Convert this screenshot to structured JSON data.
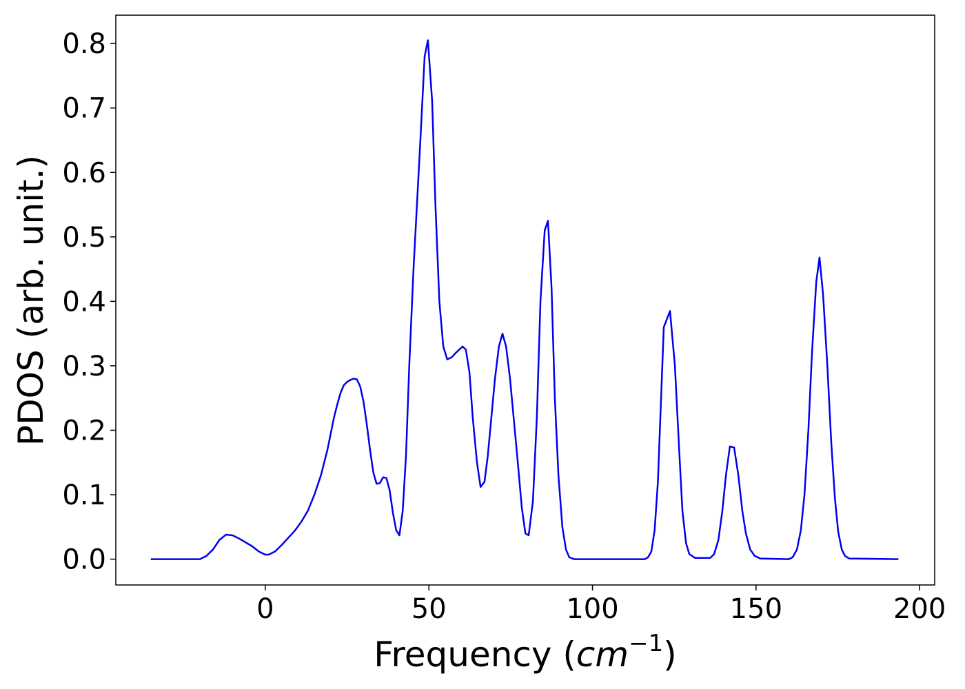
{
  "chart_data": {
    "type": "line",
    "xlabel": [
      "Frequency (",
      "cm",
      "−1",
      ")"
    ],
    "ylabel": "PDOS (arb. unit.)",
    "xlim": [
      -45.7,
      204.6
    ],
    "ylim": [
      -0.04,
      0.844
    ],
    "xticks": [
      0,
      50,
      100,
      150,
      200
    ],
    "yticks": [
      {
        "value": 0,
        "label": "0.0"
      },
      0.1,
      0.2,
      0.3,
      0.4,
      0.5,
      0.6,
      0.7,
      0.8
    ],
    "series": [
      {
        "name": "PDOS",
        "color": "#0000ee",
        "x": [
          -35,
          -20,
          -18,
          -16,
          -14,
          -12,
          -10,
          -8,
          -6,
          -4,
          -2,
          0,
          1,
          3,
          5,
          7,
          9,
          11,
          13,
          15,
          17,
          19,
          21,
          22,
          23,
          24,
          25,
          26,
          27,
          28,
          29,
          30,
          31,
          32,
          33,
          34,
          35,
          36,
          37,
          38,
          39,
          40,
          41,
          42,
          43,
          44,
          45.3,
          47.4,
          48.7,
          49.7,
          51,
          52,
          53.2,
          54.4,
          55.6,
          56.9,
          58.2,
          60.3,
          61.3,
          62.4,
          63.4,
          64.7,
          65.8,
          67,
          68,
          70.2,
          71.4,
          72.5,
          73.6,
          74.8,
          77,
          78.4,
          79.5,
          80.5,
          81.8,
          83,
          84.1,
          85.4,
          86.4,
          87.5,
          88.5,
          89.6,
          90.8,
          91.9,
          92.9,
          94.4,
          116,
          117,
          118,
          119,
          120,
          121.8,
          123.7,
          125.2,
          126.5,
          127.5,
          128.6,
          129.6,
          131.3,
          136,
          137.2,
          138.5,
          139.7,
          140.8,
          142,
          143.3,
          144.6,
          145.8,
          146.9,
          148.2,
          149.6,
          151.3,
          160,
          161.2,
          162.5,
          163.7,
          164.8,
          166,
          167.1,
          168.4,
          169.4,
          170.5,
          171.8,
          173,
          174.1,
          175.1,
          176.2,
          177.2,
          178.5,
          193.5
        ],
        "values": [
          0,
          0,
          0.005,
          0.015,
          0.03,
          0.038,
          0.037,
          0.032,
          0.026,
          0.02,
          0.012,
          0.007,
          0.007,
          0.012,
          0.022,
          0.033,
          0.044,
          0.058,
          0.075,
          0.1,
          0.13,
          0.17,
          0.22,
          0.24,
          0.258,
          0.27,
          0.275,
          0.278,
          0.28,
          0.279,
          0.268,
          0.245,
          0.21,
          0.17,
          0.135,
          0.117,
          0.118,
          0.127,
          0.126,
          0.107,
          0.072,
          0.045,
          0.037,
          0.075,
          0.16,
          0.3,
          0.45,
          0.65,
          0.78,
          0.805,
          0.71,
          0.55,
          0.4,
          0.33,
          0.31,
          0.313,
          0.32,
          0.33,
          0.325,
          0.29,
          0.22,
          0.15,
          0.112,
          0.12,
          0.16,
          0.28,
          0.33,
          0.35,
          0.33,
          0.28,
          0.16,
          0.08,
          0.04,
          0.037,
          0.09,
          0.22,
          0.4,
          0.51,
          0.525,
          0.42,
          0.25,
          0.13,
          0.05,
          0.015,
          0.003,
          0,
          0,
          0.003,
          0.012,
          0.045,
          0.12,
          0.36,
          0.385,
          0.3,
          0.17,
          0.075,
          0.025,
          0.008,
          0.002,
          0.002,
          0.008,
          0.03,
          0.075,
          0.13,
          0.175,
          0.173,
          0.13,
          0.075,
          0.04,
          0.015,
          0.005,
          0.001,
          0,
          0.003,
          0.015,
          0.045,
          0.1,
          0.2,
          0.32,
          0.43,
          0.468,
          0.41,
          0.3,
          0.18,
          0.095,
          0.043,
          0.015,
          0.005,
          0.001,
          0
        ]
      }
    ]
  }
}
